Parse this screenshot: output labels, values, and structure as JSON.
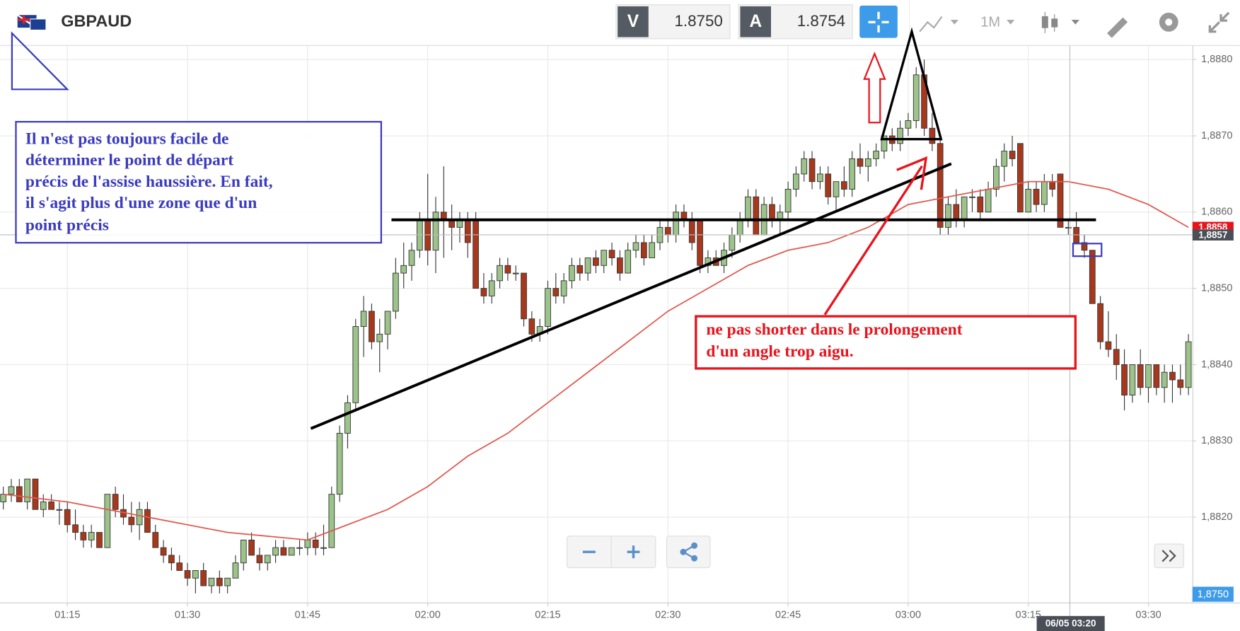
{
  "toolbar": {
    "symbol": "GBPAUD",
    "bid_label": "V",
    "bid": "1.8750",
    "ask_label": "A",
    "ask": "1.8754",
    "timeframe": "1M"
  },
  "chart_data": {
    "type": "candlestick",
    "x": [
      67,
      68,
      69,
      70,
      71,
      72,
      73,
      74,
      75,
      76,
      77,
      78,
      79,
      80,
      81,
      82,
      83,
      84,
      85,
      86,
      87,
      88,
      89,
      90,
      91,
      92,
      93,
      94,
      95,
      96,
      97,
      98,
      99,
      100,
      101,
      102,
      103,
      104,
      105,
      106,
      107,
      108,
      109,
      110,
      111,
      112,
      113,
      114,
      115,
      116,
      117,
      118,
      119,
      120,
      121,
      122,
      123,
      124,
      125,
      126,
      127,
      128,
      129,
      130,
      131,
      132,
      133,
      134,
      135,
      136,
      137,
      138,
      139,
      140,
      141,
      142,
      143,
      144,
      145,
      146,
      147,
      148,
      149,
      150,
      151,
      152,
      153,
      154,
      155,
      156,
      157,
      158,
      159,
      160,
      161,
      162,
      163,
      164,
      165,
      166,
      167,
      168,
      169,
      170,
      171,
      172,
      173,
      174,
      175,
      176,
      177,
      178,
      179,
      180,
      181,
      182,
      183,
      184,
      185,
      186,
      187,
      188,
      189,
      190,
      191,
      192,
      193,
      194,
      195,
      196,
      197,
      198,
      199,
      200,
      201,
      202,
      203,
      204,
      205,
      206,
      207,
      208,
      209,
      210,
      211,
      212,
      213,
      214,
      215
    ],
    "ohlc": [
      [
        1.8822,
        1.8824,
        1.8821,
        1.8823
      ],
      [
        1.8823,
        1.8825,
        1.8822,
        1.8824
      ],
      [
        1.8824,
        1.8825,
        1.8822,
        1.8822
      ],
      [
        1.8822,
        1.8825,
        1.8821,
        1.8825
      ],
      [
        1.8825,
        1.8825,
        1.8821,
        1.8821
      ],
      [
        1.8821,
        1.8823,
        1.882,
        1.8822
      ],
      [
        1.8822,
        1.8823,
        1.8821,
        1.8821
      ],
      [
        1.8821,
        1.8822,
        1.8819,
        1.8821
      ],
      [
        1.8821,
        1.8822,
        1.8818,
        1.8819
      ],
      [
        1.8819,
        1.8821,
        1.8817,
        1.8818
      ],
      [
        1.8818,
        1.8819,
        1.8816,
        1.8817
      ],
      [
        1.8817,
        1.8819,
        1.8816,
        1.8818
      ],
      [
        1.8818,
        1.8818,
        1.8816,
        1.8816
      ],
      [
        1.8816,
        1.8823,
        1.8816,
        1.8823
      ],
      [
        1.8823,
        1.8824,
        1.882,
        1.8821
      ],
      [
        1.8821,
        1.8823,
        1.8819,
        1.882
      ],
      [
        1.882,
        1.8822,
        1.8818,
        1.8819
      ],
      [
        1.8819,
        1.8822,
        1.8817,
        1.8821
      ],
      [
        1.8821,
        1.8822,
        1.8818,
        1.8818
      ],
      [
        1.8818,
        1.8819,
        1.8816,
        1.8816
      ],
      [
        1.8816,
        1.8817,
        1.8814,
        1.8815
      ],
      [
        1.8815,
        1.8816,
        1.8813,
        1.8814
      ],
      [
        1.8814,
        1.8815,
        1.8813,
        1.8813
      ],
      [
        1.8813,
        1.8814,
        1.8811,
        1.8812
      ],
      [
        1.8812,
        1.8813,
        1.881,
        1.8813
      ],
      [
        1.8813,
        1.8814,
        1.8811,
        1.8811
      ],
      [
        1.8811,
        1.8812,
        1.881,
        1.8812
      ],
      [
        1.8812,
        1.8813,
        1.881,
        1.8811
      ],
      [
        1.8811,
        1.8812,
        1.881,
        1.8812
      ],
      [
        1.8812,
        1.8815,
        1.8812,
        1.8814
      ],
      [
        1.8814,
        1.8817,
        1.8813,
        1.8817
      ],
      [
        1.8817,
        1.8818,
        1.8815,
        1.8815
      ],
      [
        1.8815,
        1.8816,
        1.8813,
        1.8814
      ],
      [
        1.8814,
        1.8815,
        1.8813,
        1.8815
      ],
      [
        1.8815,
        1.8817,
        1.8814,
        1.8816
      ],
      [
        1.8816,
        1.8817,
        1.8815,
        1.8815
      ],
      [
        1.8815,
        1.8816,
        1.8815,
        1.8816
      ],
      [
        1.8816,
        1.8817,
        1.8815,
        1.8816
      ],
      [
        1.8816,
        1.8818,
        1.8815,
        1.8817
      ],
      [
        1.8817,
        1.8818,
        1.8815,
        1.8816
      ],
      [
        1.8816,
        1.8819,
        1.8815,
        1.8816
      ],
      [
        1.8816,
        1.8824,
        1.8816,
        1.8823
      ],
      [
        1.8823,
        1.8832,
        1.8822,
        1.8831
      ],
      [
        1.8831,
        1.8836,
        1.8829,
        1.8835
      ],
      [
        1.8835,
        1.8846,
        1.8834,
        1.8845
      ],
      [
        1.8845,
        1.8849,
        1.8841,
        1.8847
      ],
      [
        1.8847,
        1.8848,
        1.8842,
        1.8843
      ],
      [
        1.8843,
        1.8846,
        1.8839,
        1.8844
      ],
      [
        1.8844,
        1.8847,
        1.8842,
        1.8847
      ],
      [
        1.8847,
        1.8854,
        1.8846,
        1.8852
      ],
      [
        1.8852,
        1.8856,
        1.885,
        1.8853
      ],
      [
        1.8853,
        1.8856,
        1.8851,
        1.8855
      ],
      [
        1.8855,
        1.886,
        1.8854,
        1.8859
      ],
      [
        1.8859,
        1.8865,
        1.8853,
        1.8855
      ],
      [
        1.8855,
        1.8862,
        1.8852,
        1.886
      ],
      [
        1.886,
        1.8866,
        1.8854,
        1.8859
      ],
      [
        1.8859,
        1.8861,
        1.8855,
        1.8858
      ],
      [
        1.8858,
        1.886,
        1.8856,
        1.8859
      ],
      [
        1.8859,
        1.886,
        1.8854,
        1.8856
      ],
      [
        1.8859,
        1.886,
        1.885,
        1.885
      ],
      [
        1.885,
        1.8852,
        1.8848,
        1.8849
      ],
      [
        1.8849,
        1.8852,
        1.8848,
        1.8851
      ],
      [
        1.8851,
        1.8854,
        1.885,
        1.8853
      ],
      [
        1.8853,
        1.8854,
        1.8851,
        1.8852
      ],
      [
        1.8852,
        1.8853,
        1.8851,
        1.8852
      ],
      [
        1.8852,
        1.8852,
        1.8845,
        1.8846
      ],
      [
        1.8846,
        1.8847,
        1.8843,
        1.8844
      ],
      [
        1.8844,
        1.8846,
        1.8843,
        1.8845
      ],
      [
        1.8845,
        1.8851,
        1.8844,
        1.885
      ],
      [
        1.885,
        1.8852,
        1.8848,
        1.8849
      ],
      [
        1.8849,
        1.8852,
        1.8848,
        1.8851
      ],
      [
        1.8851,
        1.8854,
        1.885,
        1.8853
      ],
      [
        1.8853,
        1.8854,
        1.8851,
        1.8852
      ],
      [
        1.8852,
        1.8854,
        1.8851,
        1.8854
      ],
      [
        1.8854,
        1.8855,
        1.8852,
        1.8853
      ],
      [
        1.8853,
        1.8855,
        1.8852,
        1.8855
      ],
      [
        1.8855,
        1.8856,
        1.8853,
        1.8854
      ],
      [
        1.8854,
        1.8855,
        1.8851,
        1.8852
      ],
      [
        1.8852,
        1.8856,
        1.8852,
        1.8855
      ],
      [
        1.8855,
        1.8857,
        1.8854,
        1.8856
      ],
      [
        1.8856,
        1.8857,
        1.8853,
        1.8854
      ],
      [
        1.8854,
        1.8857,
        1.8854,
        1.8856
      ],
      [
        1.8856,
        1.8859,
        1.8855,
        1.8858
      ],
      [
        1.8858,
        1.8859,
        1.8856,
        1.8857
      ],
      [
        1.8857,
        1.8861,
        1.8856,
        1.886
      ],
      [
        1.886,
        1.8861,
        1.8858,
        1.8859
      ],
      [
        1.8859,
        1.886,
        1.8855,
        1.8856
      ],
      [
        1.8859,
        1.8859,
        1.8852,
        1.8853
      ],
      [
        1.8853,
        1.8855,
        1.8852,
        1.8854
      ],
      [
        1.8854,
        1.8855,
        1.8853,
        1.8853
      ],
      [
        1.8853,
        1.8856,
        1.8852,
        1.8855
      ],
      [
        1.8855,
        1.8858,
        1.8854,
        1.8857
      ],
      [
        1.8857,
        1.886,
        1.8856,
        1.8859
      ],
      [
        1.8859,
        1.8863,
        1.8858,
        1.8862
      ],
      [
        1.8862,
        1.8863,
        1.8857,
        1.8857
      ],
      [
        1.8857,
        1.8862,
        1.8857,
        1.8861
      ],
      [
        1.8861,
        1.8862,
        1.8858,
        1.8859
      ],
      [
        1.8859,
        1.8861,
        1.8857,
        1.886
      ],
      [
        1.886,
        1.8864,
        1.8859,
        1.8863
      ],
      [
        1.8863,
        1.8866,
        1.8862,
        1.8865
      ],
      [
        1.8865,
        1.8868,
        1.8864,
        1.8867
      ],
      [
        1.8867,
        1.8868,
        1.8863,
        1.8864
      ],
      [
        1.8864,
        1.8866,
        1.8863,
        1.8865
      ],
      [
        1.8865,
        1.8866,
        1.8861,
        1.8862
      ],
      [
        1.8862,
        1.8864,
        1.886,
        1.8864
      ],
      [
        1.8864,
        1.8866,
        1.8862,
        1.8863
      ],
      [
        1.8863,
        1.8868,
        1.8862,
        1.8867
      ],
      [
        1.8867,
        1.8869,
        1.8865,
        1.8866
      ],
      [
        1.8866,
        1.8868,
        1.8864,
        1.8867
      ],
      [
        1.8867,
        1.8869,
        1.8866,
        1.8868
      ],
      [
        1.8868,
        1.887,
        1.8867,
        1.887
      ],
      [
        1.887,
        1.8871,
        1.8868,
        1.8869
      ],
      [
        1.8869,
        1.8872,
        1.8868,
        1.8871
      ],
      [
        1.8871,
        1.8873,
        1.887,
        1.8872
      ],
      [
        1.8872,
        1.8879,
        1.8871,
        1.8878
      ],
      [
        1.8878,
        1.888,
        1.887,
        1.8871
      ],
      [
        1.8871,
        1.8873,
        1.8868,
        1.8869
      ],
      [
        1.8869,
        1.887,
        1.8857,
        1.8858
      ],
      [
        1.8858,
        1.8862,
        1.8857,
        1.8861
      ],
      [
        1.8861,
        1.8863,
        1.8858,
        1.8859
      ],
      [
        1.8859,
        1.8862,
        1.8858,
        1.8862
      ],
      [
        1.8862,
        1.8863,
        1.886,
        1.8862
      ],
      [
        1.8862,
        1.8863,
        1.8859,
        1.886
      ],
      [
        1.886,
        1.8864,
        1.886,
        1.8863
      ],
      [
        1.8863,
        1.8867,
        1.8862,
        1.8866
      ],
      [
        1.8866,
        1.8869,
        1.8864,
        1.8868
      ],
      [
        1.8868,
        1.887,
        1.8866,
        1.8867
      ],
      [
        1.8869,
        1.8869,
        1.886,
        1.886
      ],
      [
        1.886,
        1.8864,
        1.886,
        1.8863
      ],
      [
        1.8863,
        1.8864,
        1.886,
        1.8861
      ],
      [
        1.8861,
        1.8865,
        1.886,
        1.8864
      ],
      [
        1.8864,
        1.8865,
        1.8862,
        1.8863
      ],
      [
        1.8865,
        1.8865,
        1.8858,
        1.8858
      ],
      [
        1.8858,
        1.8859,
        1.8857,
        1.8858
      ],
      [
        1.8858,
        1.886,
        1.8856,
        1.8856
      ],
      [
        1.8856,
        1.8857,
        1.8854,
        1.8855
      ],
      [
        1.8855,
        1.8855,
        1.8848,
        1.8848
      ],
      [
        1.8848,
        1.8849,
        1.8842,
        1.8843
      ],
      [
        1.8843,
        1.8847,
        1.8841,
        1.8842
      ],
      [
        1.8842,
        1.8844,
        1.8838,
        1.884
      ],
      [
        1.884,
        1.8842,
        1.8834,
        1.8836
      ],
      [
        1.8836,
        1.884,
        1.8835,
        1.884
      ],
      [
        1.884,
        1.8842,
        1.8836,
        1.8837
      ],
      [
        1.8837,
        1.884,
        1.8835,
        1.884
      ],
      [
        1.884,
        1.884,
        1.8836,
        1.8837
      ],
      [
        1.8837,
        1.884,
        1.8835,
        1.8839
      ],
      [
        1.8839,
        1.884,
        1.8835,
        1.8838
      ],
      [
        1.8838,
        1.884,
        1.8836,
        1.8837
      ],
      [
        1.8837,
        1.8844,
        1.8836,
        1.8843
      ]
    ],
    "up_color": "#9cc38a",
    "down_color": "#a8381c",
    "ma": {
      "color": "#e05a50",
      "x": [
        67,
        75,
        85,
        95,
        105,
        110,
        115,
        120,
        125,
        130,
        135,
        140,
        145,
        150,
        155,
        160,
        165,
        170,
        175,
        180,
        185,
        190,
        195,
        200,
        205,
        210,
        215
      ],
      "values": [
        1.8823,
        1.8822,
        1.882,
        1.8818,
        1.8817,
        1.8819,
        1.8821,
        1.8824,
        1.8828,
        1.8831,
        1.8835,
        1.8839,
        1.8843,
        1.8847,
        1.885,
        1.8853,
        1.8855,
        1.8856,
        1.8858,
        1.8861,
        1.8862,
        1.8863,
        1.8864,
        1.8864,
        1.8863,
        1.8861,
        1.8858
      ]
    },
    "xlim": [
      66.6,
      215.5
    ],
    "xticks": [
      {
        "value": 75,
        "label": "01:15"
      },
      {
        "value": 90,
        "label": "01:30"
      },
      {
        "value": 105,
        "label": "01:45"
      },
      {
        "value": 120,
        "label": "02:00"
      },
      {
        "value": 135,
        "label": "02:15"
      },
      {
        "value": 150,
        "label": "02:30"
      },
      {
        "value": 165,
        "label": "02:45"
      },
      {
        "value": 180,
        "label": "03:00"
      },
      {
        "value": 195,
        "label": "03:15"
      },
      {
        "value": 210,
        "label": "03:30"
      }
    ],
    "ylim": [
      1.88088,
      1.88818
    ],
    "yticks": [
      {
        "value": 1.882,
        "label": "1,8820"
      },
      {
        "value": 1.883,
        "label": "1,8830"
      },
      {
        "value": 1.884,
        "label": "1,8840"
      },
      {
        "value": 1.885,
        "label": "1,8850"
      },
      {
        "value": 1.886,
        "label": "1,8860"
      },
      {
        "value": 1.887,
        "label": "1,8870"
      },
      {
        "value": 1.888,
        "label": "1,8880"
      }
    ],
    "grid": true,
    "price_badges": [
      {
        "value": 1.8858,
        "label": "1,8858",
        "color": "#e8141c"
      },
      {
        "value": 1.8857,
        "label": "1,8857",
        "color": "#4a4f57"
      }
    ],
    "bid_badge": "1,8750",
    "crosshair_label": "06/05 03:20",
    "annotations": [
      [
        "Il n'est pas toujours facile de",
        "déterminer le point de départ",
        "précis de l'assise haussière. En fait,",
        "il s'agit plus d'une zone que d'un",
        "point précis"
      ],
      [
        "ne pas shorter dans le prolongement",
        "d'un angle trop aigu."
      ]
    ]
  }
}
